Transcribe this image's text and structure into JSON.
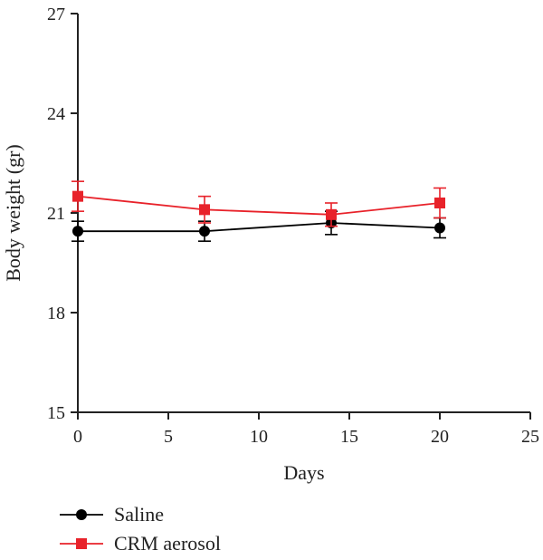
{
  "chart_data": {
    "type": "line",
    "title": "",
    "xlabel": "Days",
    "ylabel": "Body weight (gr)",
    "xlim": [
      0,
      25
    ],
    "ylim": [
      15,
      27
    ],
    "xticks": [
      0,
      5,
      10,
      15,
      20,
      25
    ],
    "yticks": [
      15,
      18,
      21,
      24,
      27
    ],
    "grid": false,
    "legend_position": "bottom-left",
    "series": [
      {
        "name": "Saline",
        "color": "#000000",
        "marker": "circle",
        "x": [
          0,
          7,
          14,
          20
        ],
        "y": [
          20.45,
          20.45,
          20.7,
          20.55
        ],
        "err": [
          0.3,
          0.3,
          0.35,
          0.3
        ]
      },
      {
        "name": "CRM aerosol",
        "color": "#e8222a",
        "marker": "square",
        "x": [
          0,
          7,
          14,
          20
        ],
        "y": [
          21.5,
          21.1,
          20.95,
          21.3
        ],
        "err": [
          0.45,
          0.4,
          0.35,
          0.45
        ]
      }
    ]
  }
}
